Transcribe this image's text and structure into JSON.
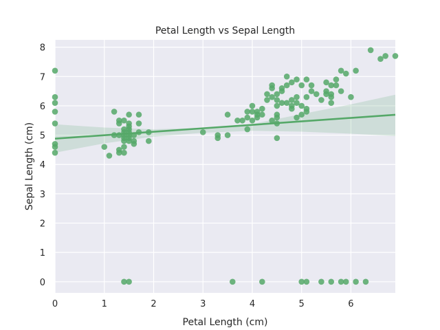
{
  "chart_data": {
    "type": "scatter",
    "title": "Petal Length vs Sepal Length",
    "xlabel": "Petal Length (cm)",
    "ylabel": "Sepal Length (cm)",
    "xlim": [
      0,
      6.9
    ],
    "ylim": [
      -0.38,
      8.25
    ],
    "xticks": [
      0,
      1,
      2,
      3,
      4,
      5,
      6
    ],
    "yticks": [
      0,
      1,
      2,
      3,
      4,
      5,
      6,
      7,
      8
    ],
    "grid": true,
    "colors": {
      "background": "#eaeaf2",
      "grid": "#ffffff",
      "points": "#55a868",
      "line": "#55a868",
      "band": "#55a868"
    },
    "regression": {
      "intercept": 4.88,
      "slope": 0.118,
      "band_lower": [
        [
          0,
          4.4
        ],
        [
          1,
          4.72
        ],
        [
          2,
          4.95
        ],
        [
          3,
          5.08
        ],
        [
          4,
          5.15
        ],
        [
          5,
          5.12
        ],
        [
          6,
          5.05
        ],
        [
          6.9,
          4.97
        ]
      ],
      "band_upper": [
        [
          0,
          5.37
        ],
        [
          1,
          5.26
        ],
        [
          2,
          5.2
        ],
        [
          3,
          5.25
        ],
        [
          4,
          5.38
        ],
        [
          5,
          5.72
        ],
        [
          6,
          6.05
        ],
        [
          6.9,
          6.38
        ]
      ]
    },
    "points": [
      [
        0,
        7.2
      ],
      [
        0,
        6.3
      ],
      [
        0,
        6.1
      ],
      [
        0,
        5.8
      ],
      [
        0,
        5.4
      ],
      [
        0,
        4.7
      ],
      [
        0,
        4.6
      ],
      [
        0,
        4.4
      ],
      [
        1.0,
        4.6
      ],
      [
        1.1,
        4.3
      ],
      [
        1.2,
        5.8
      ],
      [
        1.2,
        5.0
      ],
      [
        1.3,
        5.5
      ],
      [
        1.3,
        5.4
      ],
      [
        1.3,
        5.0
      ],
      [
        1.3,
        4.5
      ],
      [
        1.3,
        4.4
      ],
      [
        1.4,
        5.5
      ],
      [
        1.4,
        5.2
      ],
      [
        1.4,
        5.1
      ],
      [
        1.4,
        5.0
      ],
      [
        1.4,
        4.9
      ],
      [
        1.4,
        4.8
      ],
      [
        1.4,
        4.6
      ],
      [
        1.4,
        4.4
      ],
      [
        1.4,
        0
      ],
      [
        1.5,
        5.7
      ],
      [
        1.5,
        5.4
      ],
      [
        1.5,
        5.3
      ],
      [
        1.5,
        5.2
      ],
      [
        1.5,
        5.1
      ],
      [
        1.5,
        5.0
      ],
      [
        1.5,
        4.9
      ],
      [
        1.5,
        4.8
      ],
      [
        1.5,
        0
      ],
      [
        1.6,
        5.0
      ],
      [
        1.6,
        4.8
      ],
      [
        1.6,
        4.7
      ],
      [
        1.7,
        5.7
      ],
      [
        1.7,
        5.4
      ],
      [
        1.7,
        5.1
      ],
      [
        1.9,
        5.1
      ],
      [
        1.9,
        4.8
      ],
      [
        3.0,
        5.1
      ],
      [
        3.3,
        5.0
      ],
      [
        3.3,
        4.9
      ],
      [
        3.5,
        5.7
      ],
      [
        3.5,
        5.0
      ],
      [
        3.6,
        0
      ],
      [
        3.7,
        5.5
      ],
      [
        3.8,
        5.5
      ],
      [
        3.9,
        5.8
      ],
      [
        3.9,
        5.6
      ],
      [
        3.9,
        5.2
      ],
      [
        4.0,
        6.0
      ],
      [
        4.0,
        5.8
      ],
      [
        4.0,
        5.5
      ],
      [
        4.1,
        5.8
      ],
      [
        4.1,
        5.6
      ],
      [
        4.1,
        5.7
      ],
      [
        4.2,
        5.9
      ],
      [
        4.2,
        5.7
      ],
      [
        4.2,
        0
      ],
      [
        4.3,
        6.4
      ],
      [
        4.3,
        6.2
      ],
      [
        4.4,
        6.7
      ],
      [
        4.4,
        6.6
      ],
      [
        4.4,
        6.3
      ],
      [
        4.4,
        5.5
      ],
      [
        4.5,
        6.4
      ],
      [
        4.5,
        6.2
      ],
      [
        4.5,
        6.0
      ],
      [
        4.5,
        5.7
      ],
      [
        4.5,
        5.6
      ],
      [
        4.5,
        5.4
      ],
      [
        4.5,
        4.9
      ],
      [
        4.6,
        6.6
      ],
      [
        4.6,
        6.5
      ],
      [
        4.6,
        6.1
      ],
      [
        4.7,
        7.0
      ],
      [
        4.7,
        6.7
      ],
      [
        4.7,
        6.1
      ],
      [
        4.8,
        6.8
      ],
      [
        4.8,
        6.2
      ],
      [
        4.8,
        6.0
      ],
      [
        4.8,
        5.9
      ],
      [
        4.9,
        6.9
      ],
      [
        4.9,
        6.3
      ],
      [
        4.9,
        6.1
      ],
      [
        4.9,
        5.6
      ],
      [
        5.0,
        6.7
      ],
      [
        5.0,
        6.0
      ],
      [
        5.0,
        5.7
      ],
      [
        5.0,
        0
      ],
      [
        5.1,
        6.9
      ],
      [
        5.1,
        6.3
      ],
      [
        5.1,
        5.9
      ],
      [
        5.1,
        5.8
      ],
      [
        5.1,
        0
      ],
      [
        5.2,
        6.7
      ],
      [
        5.2,
        6.5
      ],
      [
        5.3,
        6.4
      ],
      [
        5.4,
        6.2
      ],
      [
        5.4,
        0
      ],
      [
        5.5,
        6.8
      ],
      [
        5.5,
        6.5
      ],
      [
        5.5,
        6.4
      ],
      [
        5.6,
        6.7
      ],
      [
        5.6,
        6.4
      ],
      [
        5.6,
        6.3
      ],
      [
        5.6,
        6.1
      ],
      [
        5.6,
        0
      ],
      [
        5.7,
        6.9
      ],
      [
        5.7,
        6.7
      ],
      [
        5.8,
        7.2
      ],
      [
        5.8,
        6.5
      ],
      [
        5.8,
        0
      ],
      [
        5.9,
        7.1
      ],
      [
        5.9,
        0
      ],
      [
        6.0,
        6.3
      ],
      [
        6.1,
        7.2
      ],
      [
        6.1,
        0
      ],
      [
        6.3,
        0
      ],
      [
        6.4,
        7.9
      ],
      [
        6.6,
        7.6
      ],
      [
        6.7,
        7.7
      ],
      [
        6.9,
        7.7
      ]
    ]
  }
}
